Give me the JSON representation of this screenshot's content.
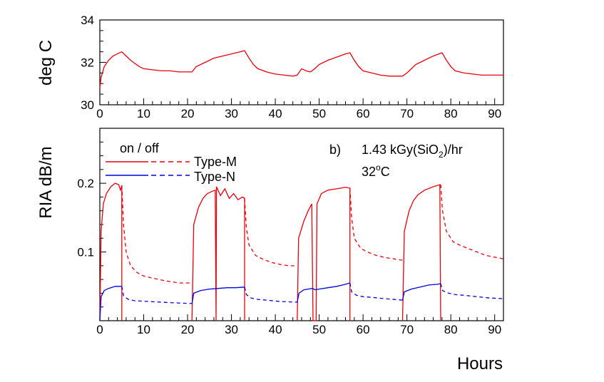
{
  "chart_data": [
    {
      "type": "line",
      "ylabel": "deg C",
      "xlim": [
        0,
        92
      ],
      "ylim": [
        30,
        34
      ],
      "x_ticks": [
        "0",
        "10",
        "20",
        "30",
        "40",
        "50",
        "60",
        "70",
        "80",
        "90"
      ],
      "y_ticks": [
        "30",
        "32",
        "34"
      ],
      "grid": false,
      "series": [
        {
          "color": "#e8000b",
          "style": "solid",
          "points": [
            [
              0,
              30.8
            ],
            [
              0.3,
              31.3
            ],
            [
              1,
              31.8
            ],
            [
              2,
              32.1
            ],
            [
              3,
              32.3
            ],
            [
              4,
              32.4
            ],
            [
              5,
              32.5
            ],
            [
              6,
              32.3
            ],
            [
              7,
              32.1
            ],
            [
              8,
              31.95
            ],
            [
              9,
              31.8
            ],
            [
              10,
              31.7
            ],
            [
              12,
              31.65
            ],
            [
              14,
              31.6
            ],
            [
              16,
              31.6
            ],
            [
              18,
              31.55
            ],
            [
              20,
              31.55
            ],
            [
              21,
              31.55
            ],
            [
              22,
              31.8
            ],
            [
              24,
              32.0
            ],
            [
              26,
              32.2
            ],
            [
              28,
              32.3
            ],
            [
              30,
              32.4
            ],
            [
              32,
              32.5
            ],
            [
              33,
              32.55
            ],
            [
              34,
              32.2
            ],
            [
              35,
              31.9
            ],
            [
              36,
              31.7
            ],
            [
              38,
              31.55
            ],
            [
              40,
              31.45
            ],
            [
              42,
              31.4
            ],
            [
              44,
              31.35
            ],
            [
              45,
              31.4
            ],
            [
              46,
              31.7
            ],
            [
              47,
              31.6
            ],
            [
              48,
              31.55
            ],
            [
              49,
              31.7
            ],
            [
              50,
              31.9
            ],
            [
              52,
              32.1
            ],
            [
              54,
              32.25
            ],
            [
              56,
              32.4
            ],
            [
              57,
              32.45
            ],
            [
              58,
              32.1
            ],
            [
              59,
              31.8
            ],
            [
              60,
              31.6
            ],
            [
              62,
              31.5
            ],
            [
              64,
              31.4
            ],
            [
              66,
              31.35
            ],
            [
              68,
              31.35
            ],
            [
              69,
              31.35
            ],
            [
              70,
              31.5
            ],
            [
              72,
              31.9
            ],
            [
              74,
              32.1
            ],
            [
              76,
              32.3
            ],
            [
              78,
              32.45
            ],
            [
              79,
              32.1
            ],
            [
              80,
              31.8
            ],
            [
              81,
              31.6
            ],
            [
              83,
              31.5
            ],
            [
              85,
              31.45
            ],
            [
              87,
              31.4
            ],
            [
              90,
              31.4
            ],
            [
              92,
              31.4
            ]
          ]
        }
      ]
    },
    {
      "type": "line",
      "xlabel": "Hours",
      "ylabel": "RIA dB/m",
      "xlim": [
        0,
        92
      ],
      "ylim": [
        0,
        0.28
      ],
      "x_ticks": [
        "0",
        "10",
        "20",
        "30",
        "40",
        "50",
        "60",
        "70",
        "80",
        "90"
      ],
      "y_ticks": [
        "0.1",
        "0.2"
      ],
      "grid": false,
      "legend": {
        "placement": "top-left",
        "header": "on / off",
        "entries": [
          {
            "name": "Type-M",
            "color": "#e8000b"
          },
          {
            "name": "Type-N",
            "color": "#0000e0"
          }
        ]
      },
      "annotations": {
        "panel": "b)",
        "dose_prefix": "1.43 kGy(SiO",
        "dose_sub": "2",
        "dose_suffix": ")/hr",
        "temp_prefix": "32",
        "temp_sup": "o",
        "temp_suffix": "C"
      },
      "series": [
        {
          "name": "Type-M",
          "state": "on",
          "color": "#e8000b",
          "style": "solid",
          "segments": [
            [
              [
                0,
                0
              ],
              [
                0.3,
                0.13
              ],
              [
                0.8,
                0.17
              ],
              [
                1.5,
                0.185
              ],
              [
                2.5,
                0.195
              ],
              [
                3.5,
                0.2
              ],
              [
                4.3,
                0.198
              ],
              [
                4.7,
                0.19
              ],
              [
                5,
                0.197
              ],
              [
                5,
                0
              ]
            ],
            [
              [
                21,
                0
              ],
              [
                21.4,
                0.14
              ],
              [
                22.5,
                0.165
              ],
              [
                23.5,
                0.178
              ],
              [
                24.5,
                0.185
              ],
              [
                25.5,
                0.188
              ],
              [
                26.3,
                0.19
              ],
              [
                26.5,
                0
              ],
              [
                26.6,
                0.195
              ],
              [
                27.5,
                0.182
              ],
              [
                28.5,
                0.192
              ],
              [
                29.5,
                0.178
              ],
              [
                30.5,
                0.185
              ],
              [
                31.5,
                0.176
              ],
              [
                32.5,
                0.18
              ],
              [
                33,
                0.178
              ],
              [
                33,
                0
              ]
            ],
            [
              [
                45,
                0
              ],
              [
                45.3,
                0.12
              ],
              [
                46.5,
                0.145
              ],
              [
                47.5,
                0.16
              ],
              [
                48.3,
                0.17
              ],
              [
                48.6,
                0
              ],
              [
                49.3,
                0
              ],
              [
                49.5,
                0.17
              ],
              [
                50.5,
                0.185
              ],
              [
                52,
                0.19
              ],
              [
                54,
                0.192
              ],
              [
                56,
                0.194
              ],
              [
                57,
                0.193
              ],
              [
                57,
                0
              ]
            ],
            [
              [
                69,
                0
              ],
              [
                69.4,
                0.13
              ],
              [
                70.5,
                0.16
              ],
              [
                71.5,
                0.175
              ],
              [
                72.5,
                0.183
              ],
              [
                74,
                0.19
              ],
              [
                76,
                0.195
              ],
              [
                77.5,
                0.198
              ],
              [
                77.7,
                0
              ]
            ]
          ]
        },
        {
          "name": "Type-M",
          "state": "off",
          "color": "#e8000b",
          "style": "dashed",
          "segments": [
            [
              [
                5,
                0.197
              ],
              [
                5.4,
                0.14
              ],
              [
                6,
                0.1
              ],
              [
                7,
                0.08
              ],
              [
                8.5,
                0.07
              ],
              [
                10,
                0.065
              ],
              [
                12,
                0.062
              ],
              [
                15,
                0.058
              ],
              [
                18,
                0.055
              ],
              [
                21,
                0.055
              ]
            ],
            [
              [
                33,
                0.178
              ],
              [
                33.4,
                0.135
              ],
              [
                34,
                0.11
              ],
              [
                35.5,
                0.095
              ],
              [
                37,
                0.09
              ],
              [
                39,
                0.085
              ],
              [
                41,
                0.082
              ],
              [
                43,
                0.08
              ],
              [
                45,
                0.08
              ]
            ],
            [
              [
                57,
                0.193
              ],
              [
                57.4,
                0.15
              ],
              [
                58,
                0.12
              ],
              [
                59.5,
                0.105
              ],
              [
                61,
                0.1
              ],
              [
                63,
                0.095
              ],
              [
                65,
                0.092
              ],
              [
                67,
                0.09
              ],
              [
                69,
                0.088
              ]
            ],
            [
              [
                77.7,
                0.198
              ],
              [
                78.1,
                0.16
              ],
              [
                79,
                0.13
              ],
              [
                80.5,
                0.115
              ],
              [
                82,
                0.11
              ],
              [
                84,
                0.105
              ],
              [
                86,
                0.1
              ],
              [
                88,
                0.095
              ],
              [
                92,
                0.09
              ]
            ]
          ]
        },
        {
          "name": "Type-N",
          "state": "on",
          "color": "#0000e0",
          "style": "solid",
          "segments": [
            [
              [
                0,
                0
              ],
              [
                0.3,
                0.035
              ],
              [
                1,
                0.044
              ],
              [
                2,
                0.047
              ],
              [
                3.5,
                0.05
              ],
              [
                5,
                0.05
              ]
            ],
            [
              [
                21,
                0.025
              ],
              [
                21.4,
                0.04
              ],
              [
                23,
                0.044
              ],
              [
                25,
                0.046
              ],
              [
                27,
                0.047
              ],
              [
                29,
                0.048
              ],
              [
                31,
                0.048
              ],
              [
                33,
                0.049
              ]
            ],
            [
              [
                45,
                0.027
              ],
              [
                45.4,
                0.04
              ],
              [
                46.5,
                0.045
              ],
              [
                47.5,
                0.046
              ],
              [
                48.5,
                0.047
              ],
              [
                49,
                0.045
              ],
              [
                50,
                0.046
              ],
              [
                52,
                0.048
              ],
              [
                54,
                0.05
              ],
              [
                56,
                0.053
              ],
              [
                57,
                0.055
              ]
            ],
            [
              [
                69,
                0.03
              ],
              [
                69.4,
                0.042
              ],
              [
                71,
                0.046
              ],
              [
                73,
                0.049
              ],
              [
                75,
                0.052
              ],
              [
                77,
                0.053
              ],
              [
                77.7,
                0.054
              ]
            ]
          ]
        },
        {
          "name": "Type-N",
          "state": "off",
          "color": "#0000e0",
          "style": "dashed",
          "segments": [
            [
              [
                5,
                0.05
              ],
              [
                5.4,
                0.036
              ],
              [
                6.5,
                0.031
              ],
              [
                8,
                0.029
              ],
              [
                11,
                0.028
              ],
              [
                14,
                0.027
              ],
              [
                17,
                0.026
              ],
              [
                21,
                0.025
              ]
            ],
            [
              [
                33,
                0.049
              ],
              [
                33.4,
                0.038
              ],
              [
                34.5,
                0.033
              ],
              [
                36,
                0.031
              ],
              [
                38,
                0.03
              ],
              [
                41,
                0.028
              ],
              [
                45,
                0.027
              ]
            ],
            [
              [
                57,
                0.055
              ],
              [
                57.4,
                0.042
              ],
              [
                58.5,
                0.037
              ],
              [
                60,
                0.035
              ],
              [
                62,
                0.034
              ],
              [
                65,
                0.032
              ],
              [
                69,
                0.03
              ]
            ],
            [
              [
                77.7,
                0.054
              ],
              [
                78.1,
                0.044
              ],
              [
                79.5,
                0.04
              ],
              [
                81,
                0.038
              ],
              [
                83,
                0.037
              ],
              [
                86,
                0.035
              ],
              [
                89,
                0.033
              ],
              [
                92,
                0.032
              ]
            ]
          ]
        }
      ]
    }
  ]
}
